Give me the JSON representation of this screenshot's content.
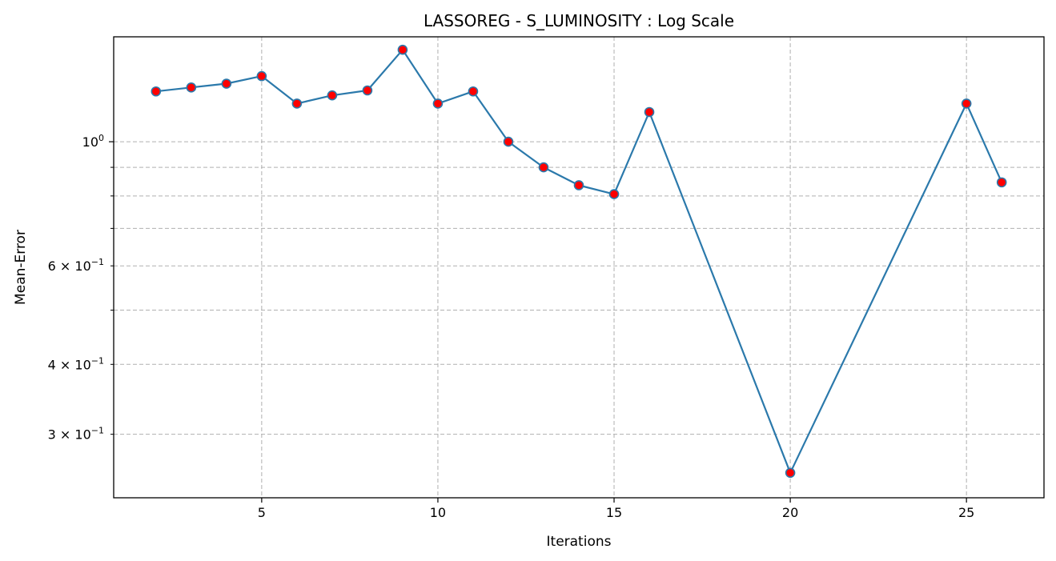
{
  "chart_data": {
    "type": "line",
    "title": "LASSOREG - S_LUMINOSITY : Log Scale",
    "xlabel": "Iterations",
    "ylabel": "Mean-Error",
    "yscale": "log",
    "xlim": [
      0.8,
      27.2
    ],
    "ylim": [
      0.231,
      1.54
    ],
    "grid": true,
    "x_ticks": [
      5,
      10,
      15,
      20,
      25
    ],
    "x_tick_labels": [
      "5",
      "10",
      "15",
      "20",
      "25"
    ],
    "y_major_ticks": [
      1.0
    ],
    "y_major_tick_labels": [
      {
        "base": "10",
        "exp": "0"
      }
    ],
    "y_minor_ticks": [
      0.3,
      0.4,
      0.5,
      0.6,
      0.7,
      0.8,
      0.9
    ],
    "y_minor_tick_labels": [
      {
        "value": 0.3,
        "coef": "3",
        "base": "10",
        "exp": "−1"
      },
      {
        "value": 0.4,
        "coef": "4",
        "base": "10",
        "exp": "−1"
      },
      {
        "value": 0.6,
        "coef": "6",
        "base": "10",
        "exp": "−1"
      }
    ],
    "line_color": "#2b79ab",
    "marker_color": "#ff0000",
    "series": [
      {
        "x": [
          2,
          3,
          4,
          5,
          6,
          7,
          8,
          9,
          10,
          11,
          12,
          13,
          14,
          15,
          16,
          20,
          25,
          26
        ],
        "values": [
          1.23,
          1.25,
          1.27,
          1.31,
          1.17,
          1.21,
          1.235,
          1.46,
          1.17,
          1.23,
          1.0,
          0.9,
          0.836,
          0.806,
          1.13,
          0.256,
          1.17,
          0.846
        ]
      }
    ]
  }
}
